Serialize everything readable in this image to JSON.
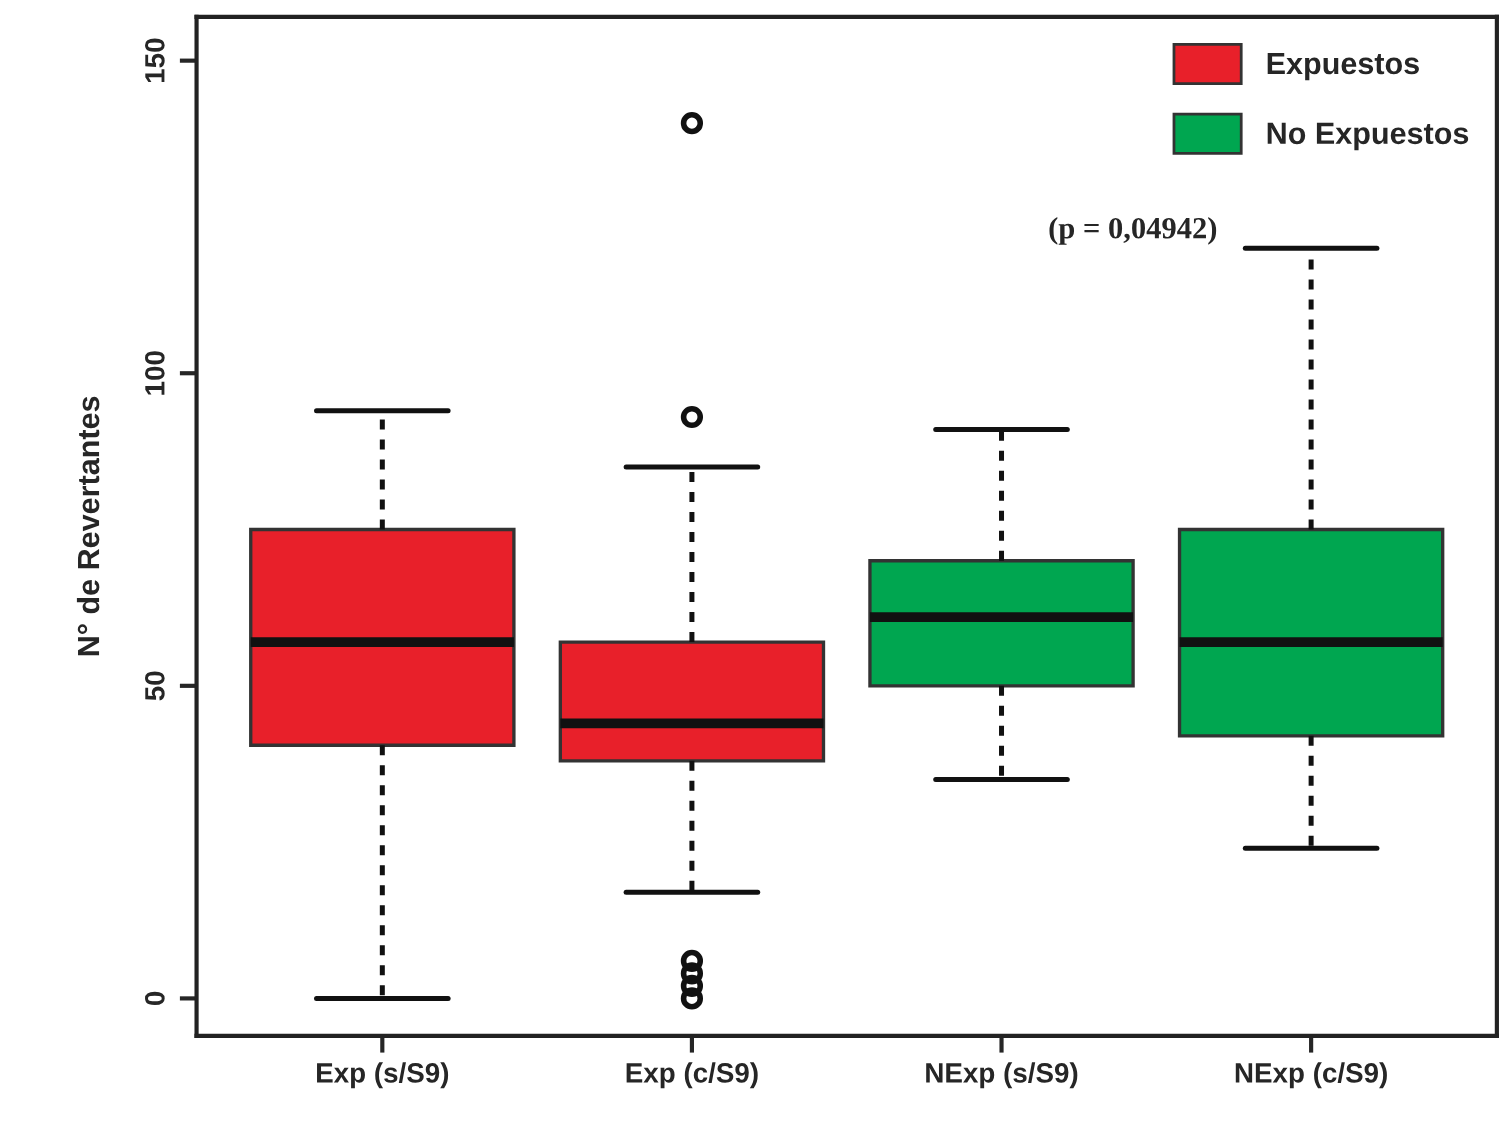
{
  "chart_data": {
    "type": "box",
    "ylabel": "N° de Revertantes",
    "categories": [
      "Exp (s/S9)",
      "Exp (c/S9)",
      "NExp (s/S9)",
      "NExp (c/S9)"
    ],
    "ylim": [
      -6,
      157
    ],
    "yticks": [
      0,
      50,
      100,
      150
    ],
    "legend": "top right",
    "grid": false,
    "annotations": [
      "(p = 0,04942)"
    ],
    "series": [
      {
        "name": "Expuestos",
        "color": "#e8202a",
        "boxes": [
          {
            "low": 0,
            "q1": 40.5,
            "median": 57,
            "q3": 75,
            "high": 94
          },
          {
            "low": 17,
            "q1": 38,
            "median": 44,
            "q3": 57,
            "high": 85,
            "outliers": [
              140,
              93,
              6,
              4,
              2,
              0
            ]
          },
          null,
          null
        ]
      },
      {
        "name": "No Expuestos",
        "color": "#00a650",
        "boxes": [
          null,
          null,
          {
            "low": 35,
            "q1": 50,
            "median": 61,
            "q3": 70,
            "high": 91
          },
          {
            "low": 24,
            "q1": 42,
            "median": 57,
            "q3": 75,
            "high": 120
          }
        ]
      }
    ]
  }
}
